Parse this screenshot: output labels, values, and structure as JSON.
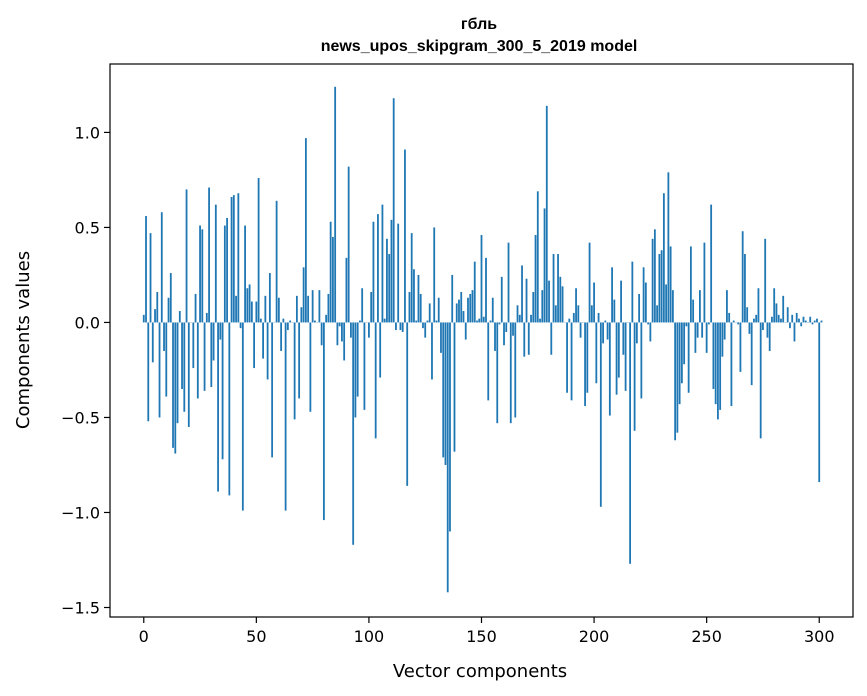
{
  "chart_data": {
    "type": "bar",
    "title": "гбль",
    "subtitle": "news_upos_skipgram_300_5_2019 model",
    "xlabel": "Vector components",
    "ylabel": "Components values",
    "xlim": [
      -15,
      315
    ],
    "ylim": [
      -1.55,
      1.36
    ],
    "xticks": [
      0,
      50,
      100,
      150,
      200,
      250,
      300
    ],
    "yticks": [
      -1.5,
      -1.0,
      -0.5,
      0.0,
      0.5,
      1.0
    ],
    "ytick_labels": [
      "−1.5",
      "−1.0",
      "−0.5",
      "0.0",
      "0.5",
      "1.0"
    ],
    "color": "#1f77b4",
    "grid": false,
    "x": "0..299 (component index)",
    "values": [
      0.04,
      0.56,
      -0.52,
      0.47,
      -0.21,
      0.07,
      0.16,
      -0.5,
      0.58,
      -0.15,
      -0.39,
      0.13,
      0.26,
      -0.66,
      -0.69,
      -0.53,
      0.06,
      -0.35,
      -0.47,
      0.7,
      -0.55,
      0.0,
      -0.24,
      0.15,
      -0.4,
      0.51,
      0.49,
      -0.36,
      0.05,
      0.71,
      -0.34,
      -0.2,
      0.62,
      -0.89,
      -0.09,
      -0.72,
      0.51,
      0.55,
      -0.91,
      0.66,
      0.67,
      0.14,
      0.68,
      -0.03,
      -0.99,
      0.51,
      0.18,
      0.2,
      0.11,
      -0.24,
      0.11,
      0.76,
      0.02,
      -0.19,
      0.14,
      -0.3,
      0.26,
      -0.71,
      0.0,
      0.64,
      0.13,
      -0.15,
      0.02,
      -0.99,
      -0.04,
      0.01,
      0.0,
      -0.51,
      0.14,
      -0.4,
      0.08,
      0.29,
      0.97,
      0.14,
      -0.47,
      0.17,
      0.01,
      0.0,
      0.17,
      -0.12,
      -1.04,
      0.04,
      0.15,
      0.53,
      0.45,
      1.24,
      -0.12,
      -0.02,
      -0.1,
      -0.2,
      0.34,
      0.82,
      -0.08,
      -1.17,
      -0.5,
      -0.39,
      0.01,
      0.18,
      -0.46,
      0.0,
      -0.08,
      0.16,
      0.53,
      -0.61,
      0.57,
      -0.29,
      0.62,
      0.02,
      0.44,
      0.36,
      0.54,
      1.18,
      -0.04,
      0.52,
      -0.04,
      -0.05,
      0.91,
      -0.86,
      0.16,
      0.47,
      0.28,
      0.01,
      0.25,
      0.15,
      -0.03,
      -0.08,
      0.01,
      0.1,
      -0.3,
      0.5,
      0.01,
      0.13,
      -0.16,
      -0.71,
      -0.75,
      -1.42,
      -1.1,
      0.25,
      -0.68,
      0.1,
      0.12,
      0.16,
      0.06,
      -0.09,
      0.13,
      0.15,
      0.17,
      0.32,
      0.01,
      0.02,
      0.46,
      0.03,
      0.34,
      -0.41,
      0.01,
      0.13,
      -0.15,
      -0.53,
      -0.01,
      0.24,
      -0.12,
      -0.05,
      0.42,
      -0.53,
      -0.07,
      -0.5,
      0.09,
      0.04,
      0.3,
      -0.18,
      0.23,
      -0.17,
      0.04,
      0.16,
      0.46,
      0.69,
      0.02,
      0.17,
      0.6,
      1.14,
      0.22,
      -0.17,
      0.36,
      0.09,
      0.36,
      0.24,
      0.19,
      0.0,
      -0.37,
      0.02,
      -0.41,
      0.05,
      0.18,
      0.09,
      -0.08,
      0.0,
      -0.44,
      -0.37,
      0.42,
      0.09,
      0.21,
      -0.32,
      0.05,
      -0.97,
      -0.11,
      0.01,
      -0.09,
      -0.49,
      0.29,
      0.12,
      -0.38,
      -0.29,
      0.22,
      -0.17,
      -0.36,
      0.0,
      -1.27,
      0.32,
      -0.57,
      -0.11,
      0.15,
      -0.4,
      0.29,
      0.21,
      -0.01,
      -0.1,
      0.44,
      0.49,
      0.09,
      0.36,
      0.38,
      0.68,
      0.2,
      0.79,
      0.4,
      0.17,
      -0.62,
      -0.58,
      -0.43,
      -0.32,
      -0.22,
      -0.02,
      -0.37,
      0.4,
      0.12,
      -0.16,
      -0.08,
      0.17,
      -0.08,
      0.42,
      -0.16,
      -0.01,
      0.62,
      -0.35,
      -0.43,
      -0.51,
      -0.46,
      -0.18,
      -0.09,
      0.17,
      0.05,
      -0.44,
      0.01,
      0.0,
      -0.01,
      -0.26,
      0.48,
      0.36,
      0.08,
      -0.06,
      -0.33,
      0.02,
      0.04,
      0.18,
      -0.61,
      -0.04,
      0.44,
      -0.08,
      -0.15,
      0.03,
      0.18,
      0.1,
      0.04,
      0.02,
      0.14,
      0.0,
      0.08,
      -0.03,
      0.04,
      -0.1,
      0.05,
      0.02,
      -0.02,
      0.03,
      0.01,
      0.0,
      0.03,
      -0.01,
      0.01,
      0.02,
      -0.84,
      0.01
    ]
  }
}
